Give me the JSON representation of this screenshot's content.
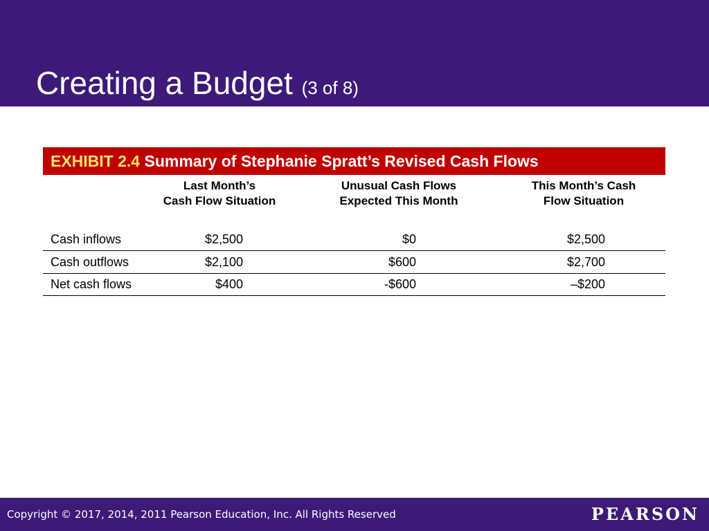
{
  "slide": {
    "title": "Creating a Budget",
    "counter": "(3 of 8)"
  },
  "exhibit": {
    "number": "EXHIBIT 2.4",
    "title": "Summary of Stephanie Spratt’s Revised Cash Flows",
    "columns": [
      {
        "line1": "Last Month’s",
        "line2": "Cash Flow Situation"
      },
      {
        "line1": "Unusual Cash Flows",
        "line2": "Expected This Month"
      },
      {
        "line1": "This Month’s Cash",
        "line2": "Flow Situation"
      }
    ],
    "rows": [
      {
        "label": "Cash inflows",
        "values": [
          "$2,500",
          "$0",
          "$2,500"
        ]
      },
      {
        "label": "Cash outflows",
        "values": [
          "$2,100",
          "$600",
          "$2,700"
        ]
      },
      {
        "label": "Net cash flows",
        "values": [
          "$400",
          "-$600",
          "–$200"
        ]
      }
    ]
  },
  "footer": {
    "copyright": "Copyright © 2017, 2014, 2011 Pearson Education, Inc. All Rights Reserved",
    "logo": "PEARSON"
  },
  "colors": {
    "header": "#3d1a78",
    "exhibit_bar": "#c00000",
    "exhibit_number": "#f8e36c"
  }
}
